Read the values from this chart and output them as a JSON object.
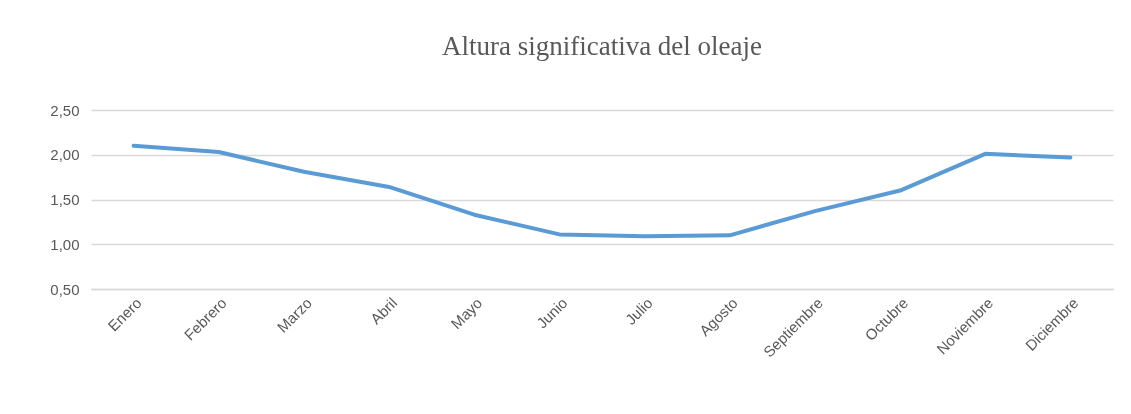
{
  "chart_data": {
    "type": "line",
    "title": "Altura significativa del oleaje",
    "categories": [
      "Enero",
      "Febrero",
      "Marzo",
      "Abril",
      "Mayo",
      "Junio",
      "Julio",
      "Agosto",
      "Septiembre",
      "Octubre",
      "Noviembre",
      "Diciembre"
    ],
    "series": [
      {
        "color": "#5b9bd5",
        "values": [
          2.1,
          2.03,
          1.81,
          1.64,
          1.33,
          1.11,
          1.09,
          1.1,
          1.37,
          1.6,
          2.01,
          1.97
        ]
      }
    ],
    "ylim": [
      0.5,
      2.5
    ],
    "yticks": [
      {
        "value": 0.5,
        "label": "0,50"
      },
      {
        "value": 1,
        "label": "1,00"
      },
      {
        "value": 1.5,
        "label": "1,50"
      },
      {
        "value": 2,
        "label": "2,00"
      },
      {
        "value": 2.5,
        "label": "2,50"
      }
    ],
    "grid": "y",
    "marker": "none",
    "line_style": "solid"
  }
}
